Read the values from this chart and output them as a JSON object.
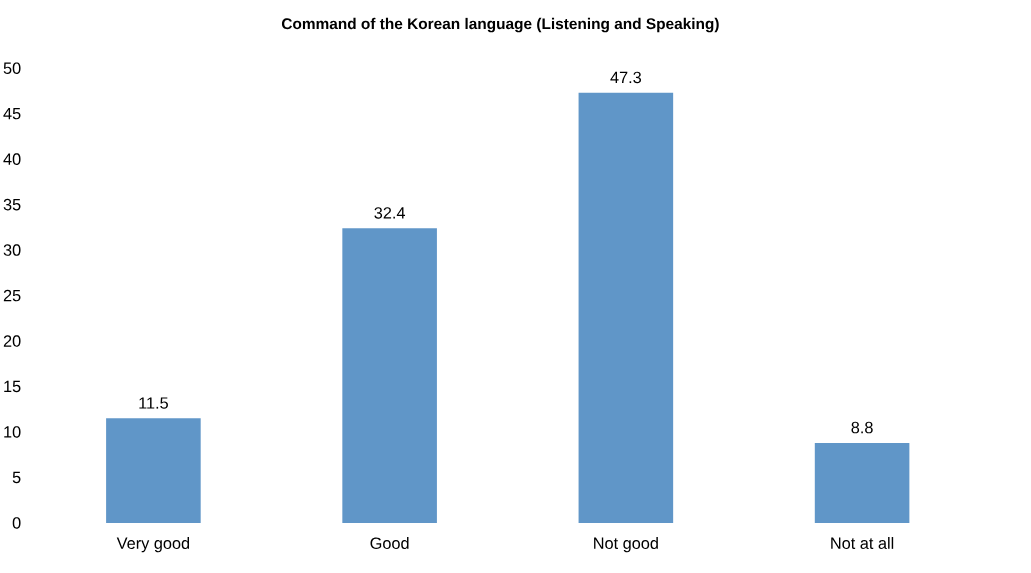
{
  "chart_data": {
    "type": "bar",
    "title": "Command of the Korean language (Listening and Speaking)",
    "categories": [
      "Very good",
      "Good",
      "Not good",
      "Not at all"
    ],
    "values": [
      11.5,
      32.4,
      47.3,
      8.8
    ],
    "color": "#6096c8",
    "ylim": [
      0,
      50
    ],
    "yticks": [
      0,
      5,
      10,
      15,
      20,
      25,
      30,
      35,
      40,
      45,
      50
    ],
    "data_labels": true
  }
}
